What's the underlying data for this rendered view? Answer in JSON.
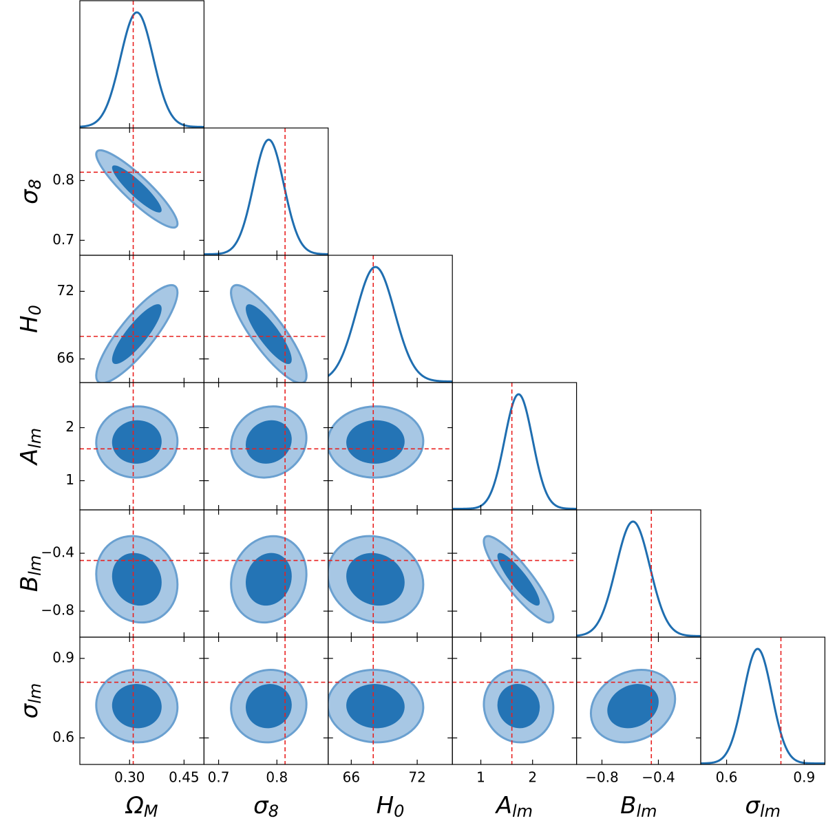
{
  "chart_data": {
    "type": "corner",
    "parameters": [
      {
        "symbol": "Ω",
        "subscript": "M",
        "lim": [
          0.163,
          0.505
        ],
        "ticks": [
          {
            "value": 0.3,
            "label": "0.30"
          },
          {
            "value": 0.45,
            "label": "0.45"
          }
        ],
        "truth": 0.31,
        "mean": 0.32,
        "sigma": 0.045
      },
      {
        "symbol": "σ",
        "subscript": "8",
        "lim": [
          0.675,
          0.888
        ],
        "ticks": [
          0.7,
          0.8
        ],
        "truth": 0.814,
        "mean": 0.786,
        "sigma": 0.026
      },
      {
        "symbol": "H",
        "subscript": "0",
        "lim": [
          63.9,
          75.2
        ],
        "ticks": [
          66,
          72
        ],
        "truth": 68,
        "mean": 68.2,
        "sigma": 1.75
      },
      {
        "symbol": "A",
        "subscript": "lm",
        "lim": [
          0.45,
          2.85
        ],
        "ticks": [
          1,
          2
        ],
        "truth": 1.6,
        "mean": 1.73,
        "sigma": 0.27
      },
      {
        "symbol": "B",
        "subscript": "lm",
        "lim": [
          -0.98,
          -0.1
        ],
        "ticks": [
          {
            "value": -0.8,
            "label": "−0.8"
          },
          {
            "value": -0.4,
            "label": "−0.4"
          }
        ],
        "truth": -0.45,
        "mean": -0.58,
        "sigma": 0.12
      },
      {
        "symbol": "σ",
        "subscript": "lm",
        "lim": [
          0.5,
          0.98
        ],
        "ticks": [
          0.6,
          0.9
        ],
        "truth": 0.81,
        "mean": 0.72,
        "sigma": 0.055
      }
    ],
    "correlation": [
      [
        -0.9
      ],
      [
        0.85,
        -0.85
      ],
      [
        0.02,
        0.12,
        0.02
      ],
      [
        -0.12,
        0.12,
        -0.12,
        -0.88
      ],
      [
        -0.03,
        0.05,
        -0.03,
        -0.05,
        0.2
      ]
    ],
    "colors": {
      "curve": "#1f6eb0",
      "inner": "#2474b5",
      "outer": "#a7c7e4",
      "outer_edge": "#6aa0d0",
      "truth": "#e8201f"
    }
  }
}
